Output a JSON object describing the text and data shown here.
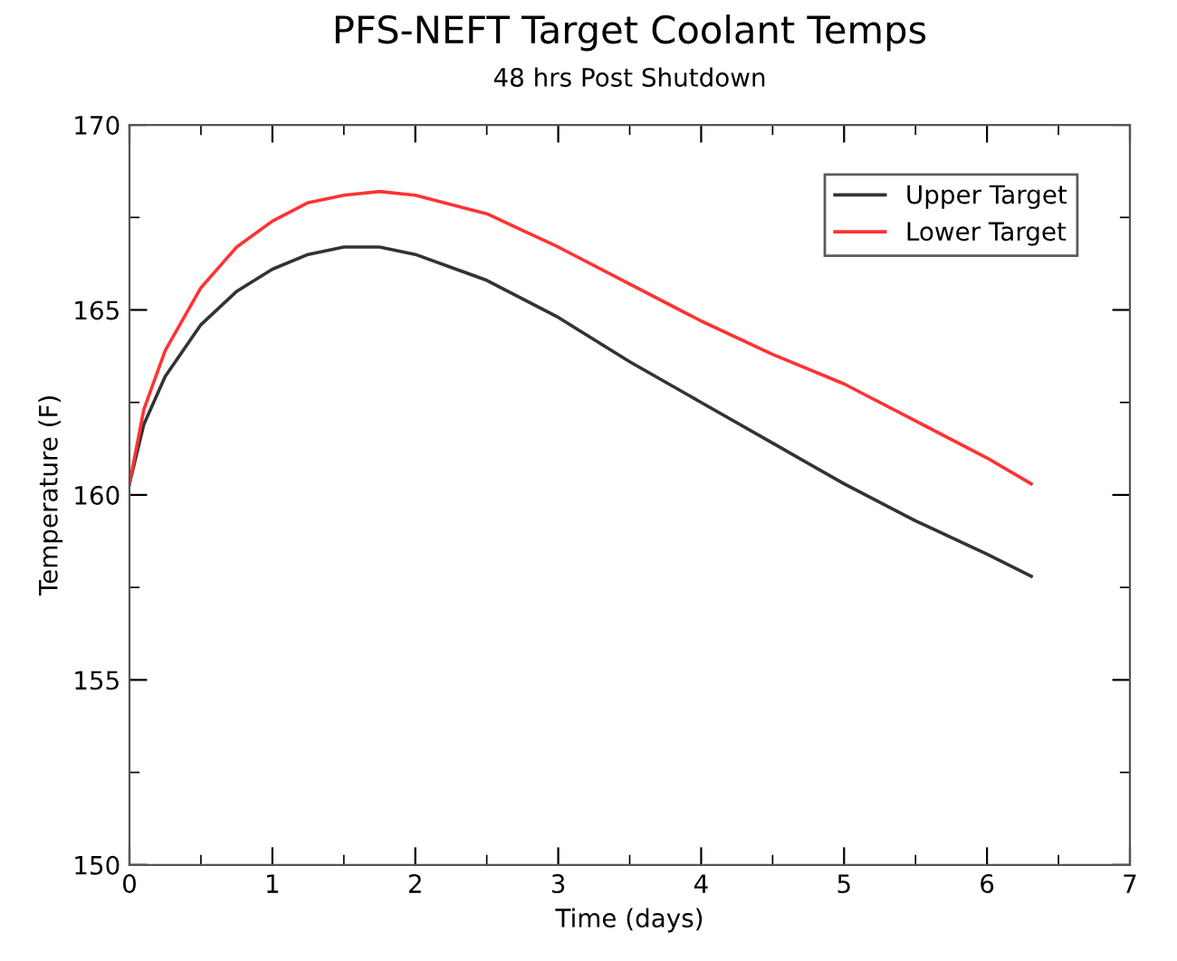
{
  "chart_data": {
    "type": "line",
    "title": "PFS-NEFT Target Coolant Temps",
    "subtitle": "48 hrs Post Shutdown",
    "xlabel": "Time (days)",
    "ylabel": "Temperature (F)",
    "x": [
      0,
      0.1,
      0.25,
      0.5,
      0.75,
      1,
      1.25,
      1.5,
      1.75,
      2,
      2.5,
      3,
      3.5,
      4,
      4.5,
      5,
      5.5,
      6,
      6.31
    ],
    "series": [
      {
        "name": "Upper Target",
        "color": "#333333",
        "values": [
          160.3,
          161.9,
          163.2,
          164.6,
          165.5,
          166.1,
          166.5,
          166.7,
          166.7,
          166.5,
          165.8,
          164.8,
          163.6,
          162.5,
          161.4,
          160.3,
          159.3,
          158.4,
          157.8
        ]
      },
      {
        "name": "Lower Target",
        "color": "#ff3333",
        "values": [
          160.3,
          162.3,
          163.9,
          165.6,
          166.7,
          167.4,
          167.9,
          168.1,
          168.2,
          168.1,
          167.6,
          166.7,
          165.7,
          164.7,
          163.8,
          163.0,
          162.0,
          161.0,
          160.3
        ]
      }
    ],
    "xlim": [
      0,
      7
    ],
    "xticks": [
      0,
      1,
      2,
      3,
      4,
      5,
      6,
      7
    ],
    "ylim": [
      150,
      170
    ],
    "yticks": [
      150,
      155,
      160,
      165,
      170
    ],
    "legend": "top right",
    "grid": false,
    "marker": "none",
    "line_style": "solid"
  }
}
